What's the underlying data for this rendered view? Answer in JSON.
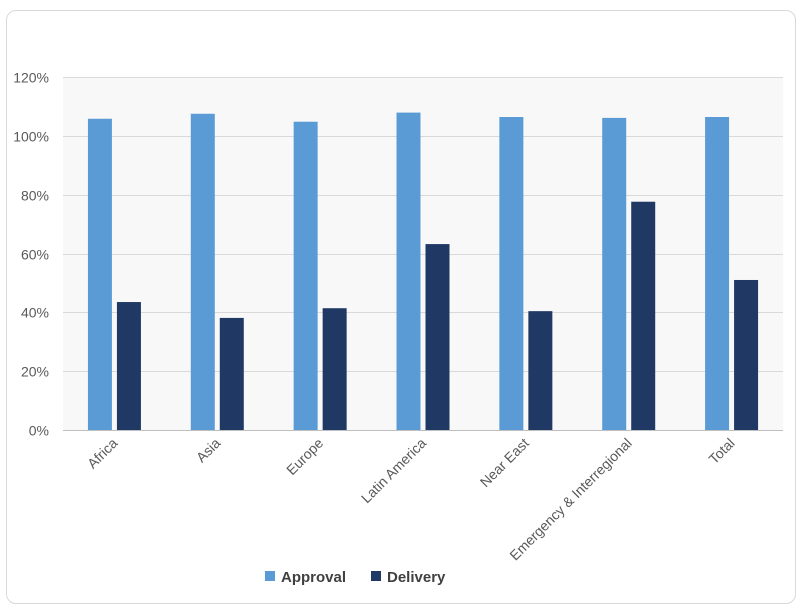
{
  "chart_data": {
    "type": "bar",
    "title": "",
    "xlabel": "",
    "ylabel": "",
    "categories": [
      "Africa",
      "Asia",
      "Europe",
      "Latin America",
      "Near East",
      "Emergency & Interregional",
      "Total"
    ],
    "series": [
      {
        "name": "Approval",
        "color": "#5b9bd5",
        "values": [
          105.8,
          107.5,
          104.8,
          107.9,
          106.4,
          106.1,
          106.4
        ]
      },
      {
        "name": "Delivery",
        "color": "#203864",
        "values": [
          43.5,
          38.1,
          41.4,
          63.2,
          40.4,
          77.6,
          51.0
        ]
      }
    ],
    "ylim": [
      0,
      120
    ],
    "yticks": [
      "0%",
      "20%",
      "40%",
      "60%",
      "80%",
      "100%",
      "120%"
    ],
    "ytick_values": [
      0,
      20,
      40,
      60,
      80,
      100,
      120
    ],
    "grid": true,
    "legend_position": "bottom"
  }
}
